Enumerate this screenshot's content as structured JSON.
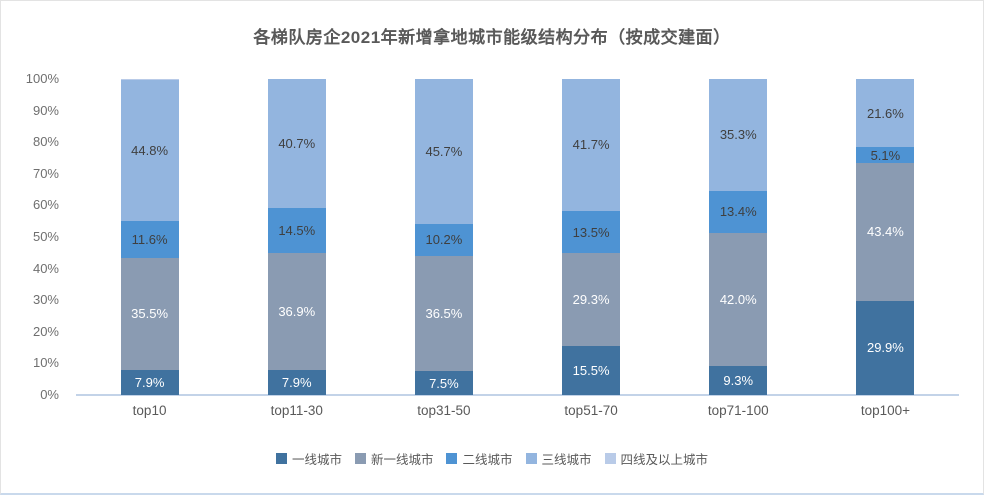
{
  "chart_data": {
    "type": "bar",
    "variant": "stacked-100-percent-column",
    "title": "各梯队房企2021年新增拿地城市能级结构分布（按成交建面）",
    "categories": [
      "top10",
      "top11-30",
      "top31-50",
      "top51-70",
      "top71-100",
      "top100+"
    ],
    "series": [
      {
        "name": "一线城市",
        "color": "#40729F",
        "label_color": "#ffffff",
        "values": [
          7.9,
          7.9,
          7.5,
          15.5,
          9.3,
          29.9
        ]
      },
      {
        "name": "新一线城市",
        "color": "#8A9BB2",
        "label_color": "#ffffff",
        "values": [
          35.5,
          36.9,
          36.5,
          29.3,
          42.0,
          43.4
        ]
      },
      {
        "name": "二线城市",
        "color": "#4E93D3",
        "label_color": "#3f3f3f",
        "values": [
          11.6,
          14.5,
          10.2,
          13.5,
          13.4,
          5.1
        ]
      },
      {
        "name": "三线城市",
        "color": "#93B5DF",
        "label_color": "#3f3f3f",
        "values": [
          44.8,
          40.7,
          45.7,
          41.7,
          35.3,
          21.6
        ]
      },
      {
        "name": "四线及以上城市",
        "color": "#B9CBE8",
        "label_color": "#3f3f3f",
        "values": [
          0.2,
          0.0,
          0.1,
          0.0,
          0.0,
          0.0
        ]
      }
    ],
    "value_suffix": "%",
    "label_decimals": 1,
    "label_min_value": 5,
    "xlabel": "",
    "ylabel": "",
    "ylim": [
      0,
      100
    ],
    "yticks": [
      0,
      10,
      20,
      30,
      40,
      50,
      60,
      70,
      80,
      90,
      100
    ],
    "ytick_suffix": "%",
    "grid": false,
    "legend_position": "bottom"
  }
}
